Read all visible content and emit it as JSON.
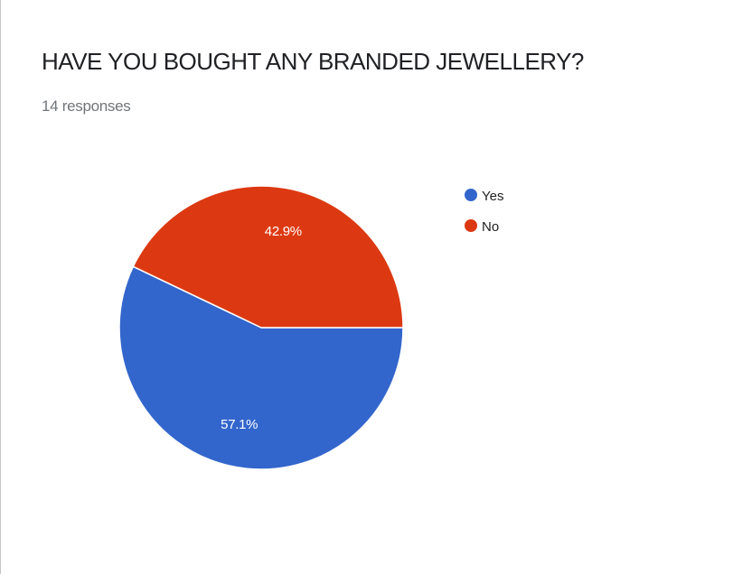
{
  "title": "HAVE YOU BOUGHT ANY BRANDED JEWELLERY?",
  "subtitle": "14 responses",
  "chart_data": {
    "type": "pie",
    "title": "HAVE YOU BOUGHT ANY BRANDED JEWELLERY?",
    "total_responses": 14,
    "categories": [
      "Yes",
      "No"
    ],
    "values": [
      57.1,
      42.9
    ],
    "slice_labels": [
      "57.1%",
      "42.9%"
    ],
    "colors": [
      "#3366cc",
      "#dc3912"
    ],
    "legend_position": "right"
  }
}
